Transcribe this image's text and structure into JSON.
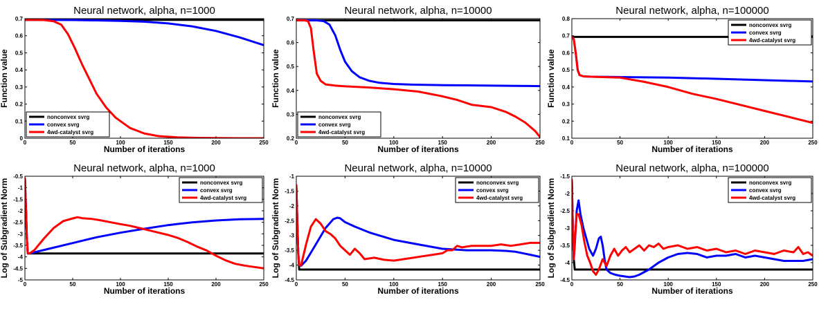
{
  "colors": {
    "nonconvex": "#000000",
    "convex": "#0000ff",
    "catalyst": "#ff0000"
  },
  "chart_data": [
    {
      "type": "line",
      "title": "Neural network, alpha, n=1000",
      "xlabel": "Number of iterations",
      "ylabel": "Function value",
      "xlim": [
        0,
        250
      ],
      "ylim": [
        0,
        0.7
      ],
      "xticks": [
        0,
        50,
        100,
        150,
        200,
        250
      ],
      "yticks": [
        0,
        0.1,
        0.2,
        0.3,
        0.4,
        0.5,
        0.6,
        0.7
      ],
      "legend": "bottom-left",
      "series": [
        {
          "name": "nonconvex svrg",
          "color": "#000000",
          "x": [
            0,
            250
          ],
          "y": [
            0.693,
            0.693
          ]
        },
        {
          "name": "convex svrg",
          "color": "#0000ff",
          "x": [
            0,
            25,
            50,
            75,
            100,
            125,
            150,
            175,
            200,
            225,
            250
          ],
          "y": [
            0.693,
            0.693,
            0.692,
            0.69,
            0.687,
            0.682,
            0.672,
            0.655,
            0.628,
            0.59,
            0.545
          ]
        },
        {
          "name": "4wd-catalyst svrg",
          "color": "#ff0000",
          "x": [
            0,
            10,
            20,
            30,
            38,
            45,
            52,
            60,
            68,
            75,
            85,
            95,
            110,
            125,
            140,
            160,
            180,
            200,
            225,
            250
          ],
          "y": [
            0.693,
            0.693,
            0.692,
            0.685,
            0.665,
            0.61,
            0.53,
            0.43,
            0.34,
            0.26,
            0.18,
            0.12,
            0.06,
            0.028,
            0.012,
            0.005,
            0.002,
            0.001,
            0.0,
            0.0
          ]
        }
      ]
    },
    {
      "type": "line",
      "title": "Neural network, alpha, n=10000",
      "xlabel": "Number of iterations",
      "ylabel": "Function value",
      "xlim": [
        0,
        250
      ],
      "ylim": [
        0.2,
        0.7
      ],
      "xticks": [
        0,
        50,
        100,
        150,
        200,
        250
      ],
      "yticks": [
        0.2,
        0.3,
        0.4,
        0.5,
        0.6,
        0.7
      ],
      "legend": "bottom-left",
      "series": [
        {
          "name": "nonconvex svrg",
          "color": "#000000",
          "x": [
            0,
            250
          ],
          "y": [
            0.693,
            0.693
          ]
        },
        {
          "name": "convex svrg",
          "color": "#0000ff",
          "x": [
            0,
            20,
            28,
            34,
            40,
            45,
            50,
            57,
            65,
            75,
            85,
            100,
            120,
            150,
            175,
            200,
            225,
            250
          ],
          "y": [
            0.693,
            0.693,
            0.69,
            0.675,
            0.63,
            0.57,
            0.52,
            0.48,
            0.455,
            0.44,
            0.432,
            0.427,
            0.424,
            0.422,
            0.421,
            0.42,
            0.419,
            0.418
          ]
        },
        {
          "name": "4wd-catalyst svrg",
          "color": "#ff0000",
          "x": [
            0,
            8,
            12,
            15,
            18,
            21,
            25,
            30,
            40,
            50,
            75,
            100,
            125,
            150,
            165,
            180,
            200,
            215,
            225,
            235,
            245,
            250
          ],
          "y": [
            0.693,
            0.693,
            0.69,
            0.66,
            0.56,
            0.47,
            0.44,
            0.425,
            0.42,
            0.417,
            0.412,
            0.405,
            0.395,
            0.375,
            0.36,
            0.34,
            0.33,
            0.31,
            0.29,
            0.265,
            0.23,
            0.205
          ]
        }
      ]
    },
    {
      "type": "line",
      "title": "Neural network, alpha, n=100000",
      "xlabel": "Number of iterations",
      "ylabel": "Function value",
      "xlim": [
        0,
        250
      ],
      "ylim": [
        0.1,
        0.8
      ],
      "xticks": [
        0,
        50,
        100,
        150,
        200,
        250
      ],
      "yticks": [
        0.1,
        0.2,
        0.3,
        0.4,
        0.5,
        0.6,
        0.7,
        0.8
      ],
      "legend": "top-right",
      "series": [
        {
          "name": "nonconvex svrg",
          "color": "#000000",
          "x": [
            0,
            250
          ],
          "y": [
            0.693,
            0.693
          ]
        },
        {
          "name": "convex svrg",
          "color": "#0000ff",
          "x": [
            0,
            2,
            4,
            6,
            8,
            12,
            20,
            50,
            100,
            150,
            200,
            250
          ],
          "y": [
            0.693,
            0.68,
            0.6,
            0.5,
            0.47,
            0.462,
            0.46,
            0.458,
            0.455,
            0.448,
            0.44,
            0.432
          ]
        },
        {
          "name": "4wd-catalyst svrg",
          "color": "#ff0000",
          "x": [
            0,
            2,
            4,
            6,
            8,
            12,
            20,
            50,
            75,
            100,
            125,
            150,
            175,
            200,
            225,
            250
          ],
          "y": [
            0.693,
            0.68,
            0.6,
            0.5,
            0.47,
            0.462,
            0.46,
            0.455,
            0.43,
            0.4,
            0.36,
            0.33,
            0.295,
            0.26,
            0.225,
            0.19
          ]
        }
      ]
    },
    {
      "type": "line",
      "title": "Neural network, alpha, n=1000",
      "xlabel": "Number of iterations",
      "ylabel": "Log of Subgradient Norm",
      "xlim": [
        0,
        250
      ],
      "ylim": [
        -5,
        -0.5
      ],
      "xticks": [
        0,
        50,
        100,
        150,
        200,
        250
      ],
      "yticks": [
        -5,
        -4.5,
        -4,
        -3.5,
        -3,
        -2.5,
        -2,
        -1.5,
        -1,
        -0.5
      ],
      "legend": "top-right",
      "series": [
        {
          "name": "nonconvex svrg",
          "color": "#000000",
          "x": [
            0,
            1,
            2,
            3,
            250
          ],
          "y": [
            -0.6,
            -1.8,
            -3.2,
            -3.85,
            -3.85
          ]
        },
        {
          "name": "convex svrg",
          "color": "#0000ff",
          "x": [
            0,
            1,
            2,
            3,
            5,
            25,
            50,
            75,
            100,
            125,
            150,
            175,
            200,
            225,
            250
          ],
          "y": [
            -0.6,
            -1.8,
            -3.2,
            -3.85,
            -3.85,
            -3.65,
            -3.4,
            -3.15,
            -2.95,
            -2.78,
            -2.62,
            -2.5,
            -2.42,
            -2.37,
            -2.35
          ]
        },
        {
          "name": "4wd-catalyst svrg",
          "color": "#ff0000",
          "x": [
            0,
            1,
            2,
            3,
            5,
            10,
            20,
            30,
            40,
            50,
            55,
            60,
            70,
            80,
            90,
            100,
            110,
            120,
            130,
            140,
            150,
            160,
            170,
            180,
            190,
            200,
            210,
            220,
            230,
            240,
            250
          ],
          "y": [
            -0.6,
            -1.8,
            -3.2,
            -3.85,
            -3.85,
            -3.7,
            -3.2,
            -2.75,
            -2.45,
            -2.33,
            -2.28,
            -2.32,
            -2.35,
            -2.42,
            -2.5,
            -2.58,
            -2.65,
            -2.75,
            -2.85,
            -2.95,
            -3.05,
            -3.18,
            -3.35,
            -3.55,
            -3.72,
            -3.95,
            -4.15,
            -4.3,
            -4.38,
            -4.44,
            -4.5
          ]
        }
      ]
    },
    {
      "type": "line",
      "title": "Neural network, alpha, n=10000",
      "xlabel": "Number of iterations",
      "ylabel": "Log of Subgradient Norm",
      "xlim": [
        0,
        250
      ],
      "ylim": [
        -4.5,
        -1
      ],
      "xticks": [
        0,
        50,
        100,
        150,
        200,
        250
      ],
      "yticks": [
        -4.5,
        -4,
        -3.5,
        -3,
        -2.5,
        -2,
        -1.5,
        -1
      ],
      "legend": "top-right",
      "series": [
        {
          "name": "nonconvex svrg",
          "color": "#000000",
          "x": [
            0,
            1,
            2,
            3,
            250
          ],
          "y": [
            -1.3,
            -2.5,
            -3.6,
            -4.15,
            -4.15
          ]
        },
        {
          "name": "convex svrg",
          "color": "#0000ff",
          "x": [
            0,
            1,
            2,
            3,
            5,
            10,
            20,
            30,
            38,
            42,
            45,
            50,
            60,
            75,
            100,
            125,
            150,
            175,
            200,
            215,
            225,
            240,
            250
          ],
          "y": [
            -1.3,
            -2.5,
            -3.6,
            -4.0,
            -4.02,
            -3.85,
            -3.3,
            -2.75,
            -2.45,
            -2.4,
            -2.42,
            -2.55,
            -2.7,
            -2.9,
            -3.15,
            -3.3,
            -3.45,
            -3.5,
            -3.5,
            -3.52,
            -3.55,
            -3.65,
            -3.72
          ]
        },
        {
          "name": "4wd-catalyst svrg",
          "color": "#ff0000",
          "x": [
            0,
            1,
            2,
            3,
            5,
            10,
            15,
            20,
            25,
            30,
            35,
            40,
            45,
            50,
            55,
            60,
            65,
            70,
            80,
            90,
            100,
            110,
            120,
            130,
            140,
            150,
            155,
            160,
            165,
            170,
            180,
            190,
            200,
            210,
            220,
            230,
            240,
            250
          ],
          "y": [
            -1.3,
            -2.5,
            -3.6,
            -4.0,
            -4.0,
            -3.3,
            -2.7,
            -2.45,
            -2.6,
            -2.85,
            -2.95,
            -3.1,
            -3.35,
            -3.5,
            -3.65,
            -3.45,
            -3.6,
            -3.8,
            -3.75,
            -3.82,
            -3.85,
            -3.8,
            -3.75,
            -3.7,
            -3.65,
            -3.6,
            -3.5,
            -3.5,
            -3.35,
            -3.4,
            -3.35,
            -3.35,
            -3.35,
            -3.3,
            -3.35,
            -3.3,
            -3.25,
            -3.25
          ]
        }
      ]
    },
    {
      "type": "line",
      "title": "Neural network, alpha, n=100000",
      "xlabel": "Number of iterations",
      "ylabel": "Log of Subgradient Norm",
      "xlim": [
        0,
        250
      ],
      "ylim": [
        -4.5,
        -1.5
      ],
      "xticks": [
        0,
        50,
        100,
        150,
        200,
        250
      ],
      "yticks": [
        -4.5,
        -4,
        -3.5,
        -3,
        -2.5,
        -2,
        -1.5
      ],
      "legend": "top-right",
      "series": [
        {
          "name": "nonconvex svrg",
          "color": "#000000",
          "x": [
            0,
            1,
            2,
            3,
            250
          ],
          "y": [
            -1.6,
            -3.0,
            -3.9,
            -4.2,
            -4.2
          ]
        },
        {
          "name": "convex svrg",
          "color": "#0000ff",
          "x": [
            0,
            1,
            2,
            3,
            5,
            7,
            9,
            12,
            15,
            18,
            20,
            22,
            25,
            28,
            30,
            32,
            34,
            36,
            40,
            45,
            50,
            55,
            60,
            65,
            70,
            80,
            90,
            100,
            110,
            120,
            130,
            140,
            150,
            160,
            170,
            180,
            190,
            200,
            210,
            220,
            230,
            240,
            250
          ],
          "y": [
            -1.6,
            -3.0,
            -3.9,
            -3.5,
            -2.5,
            -2.2,
            -2.6,
            -3.0,
            -3.3,
            -3.6,
            -3.7,
            -3.8,
            -3.6,
            -3.3,
            -3.25,
            -3.5,
            -3.9,
            -4.2,
            -4.3,
            -4.35,
            -4.38,
            -4.4,
            -4.42,
            -4.4,
            -4.35,
            -4.2,
            -4.0,
            -3.85,
            -3.75,
            -3.72,
            -3.75,
            -3.85,
            -3.8,
            -3.8,
            -3.75,
            -3.85,
            -3.8,
            -3.85,
            -3.9,
            -3.95,
            -3.95,
            -3.95,
            -3.9
          ]
        },
        {
          "name": "4wd-catalyst svrg",
          "color": "#ff0000",
          "x": [
            0,
            1,
            2,
            3,
            5,
            7,
            10,
            13,
            16,
            19,
            22,
            25,
            28,
            32,
            36,
            40,
            44,
            48,
            52,
            56,
            60,
            65,
            70,
            75,
            80,
            85,
            90,
            95,
            100,
            110,
            120,
            130,
            140,
            150,
            160,
            170,
            180,
            190,
            200,
            210,
            220,
            230,
            235,
            240,
            245,
            250
          ],
          "y": [
            -1.6,
            -3.0,
            -3.9,
            -3.4,
            -2.6,
            -2.6,
            -2.9,
            -3.4,
            -3.8,
            -4.0,
            -4.25,
            -4.35,
            -4.2,
            -3.9,
            -4.1,
            -3.8,
            -3.6,
            -3.8,
            -3.65,
            -3.55,
            -3.7,
            -3.6,
            -3.5,
            -3.65,
            -3.5,
            -3.55,
            -3.45,
            -3.6,
            -3.55,
            -3.5,
            -3.6,
            -3.55,
            -3.65,
            -3.6,
            -3.7,
            -3.65,
            -3.75,
            -3.65,
            -3.7,
            -3.75,
            -3.65,
            -3.7,
            -3.55,
            -3.75,
            -3.7,
            -3.8
          ]
        }
      ]
    }
  ]
}
